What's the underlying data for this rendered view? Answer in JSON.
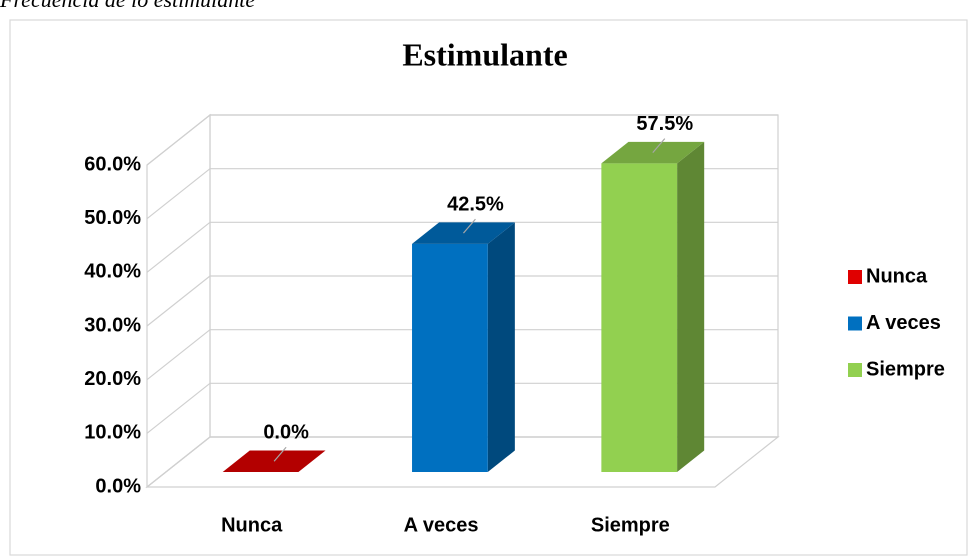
{
  "caption": "Frecuencia de lo estimulante",
  "chart_data": {
    "type": "bar3d",
    "title": "Estimulante",
    "categories": [
      "Nunca",
      "A veces",
      "Siempre"
    ],
    "values": [
      0,
      42.5,
      57.5
    ],
    "value_labels": [
      "0.0%",
      "42.5%",
      "57.5%"
    ],
    "colors": [
      "#e00000",
      "#0070c0",
      "#92d050"
    ],
    "ylim": [
      0,
      60
    ],
    "yticks": [
      {
        "value": 0,
        "label": "0.0%"
      },
      {
        "value": 10,
        "label": "10.0%"
      },
      {
        "value": 20,
        "label": "20.0%"
      },
      {
        "value": 30,
        "label": "30.0%"
      },
      {
        "value": 40,
        "label": "40.0%"
      },
      {
        "value": 50,
        "label": "50.0%"
      },
      {
        "value": 60,
        "label": "60.0%"
      }
    ],
    "grid": true,
    "legend": "right"
  }
}
